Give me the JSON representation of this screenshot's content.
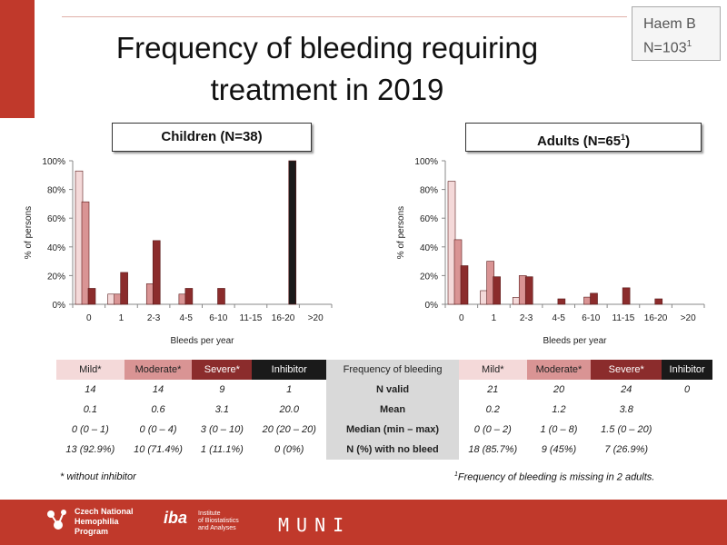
{
  "title_line1": "Frequency of bleeding requiring",
  "title_line2": "treatment in 2019",
  "badge_line1": "Haem B",
  "badge_line2": "N=103",
  "badge_sup": "1",
  "colors": {
    "mild": "#f4d9d9",
    "moderate": "#d99494",
    "severe": "#8b2c2c",
    "inhibitor": "#1a1a1a",
    "accent": "#c0392b"
  },
  "chart_data": [
    {
      "type": "bar",
      "title": "Children (N=38)",
      "xlabel": "Bleeds per year",
      "ylabel": "% of persons",
      "ylim": [
        0,
        100
      ],
      "yticks": [
        "0%",
        "20%",
        "40%",
        "60%",
        "80%",
        "100%"
      ],
      "categories": [
        "0",
        "1",
        "2-3",
        "4-5",
        "6-10",
        "11-15",
        "16-20",
        ">20"
      ],
      "series": [
        {
          "name": "Mild*",
          "values": [
            92.9,
            7.1,
            0,
            0,
            0,
            0,
            0,
            0
          ]
        },
        {
          "name": "Moderate*",
          "values": [
            71.4,
            7.1,
            14.3,
            7.1,
            0,
            0,
            0,
            0
          ]
        },
        {
          "name": "Severe*",
          "values": [
            11.1,
            22.2,
            44.4,
            11.1,
            11.1,
            0,
            0,
            0
          ]
        },
        {
          "name": "Inhibitor",
          "values": [
            0,
            0,
            0,
            0,
            0,
            0,
            100,
            0
          ]
        }
      ]
    },
    {
      "type": "bar",
      "title": "Adults (N=65",
      "title_sup": "1",
      "title_end": ")",
      "xlabel": "Bleeds per year",
      "ylabel": "% of persons",
      "ylim": [
        0,
        100
      ],
      "yticks": [
        "0%",
        "20%",
        "40%",
        "60%",
        "80%",
        "100%"
      ],
      "categories": [
        "0",
        "1",
        "2-3",
        "4-5",
        "6-10",
        "11-15",
        "16-20",
        ">20"
      ],
      "series": [
        {
          "name": "Mild*",
          "values": [
            85.7,
            9.5,
            4.8,
            0,
            0,
            0,
            0,
            0
          ]
        },
        {
          "name": "Moderate*",
          "values": [
            45,
            30,
            20,
            0,
            5,
            0,
            0,
            0
          ]
        },
        {
          "name": "Severe*",
          "values": [
            26.9,
            19.2,
            19.2,
            3.8,
            7.7,
            11.5,
            3.8,
            0
          ]
        },
        {
          "name": "Inhibitor",
          "values": [
            0,
            0,
            0,
            0,
            0,
            0,
            0,
            0
          ]
        }
      ]
    }
  ],
  "table": {
    "headers": [
      "Mild*",
      "Moderate*",
      "Severe*",
      "Inhibitor",
      "Frequency of bleeding",
      "Mild*",
      "Moderate*",
      "Severe*",
      "Inhibitor"
    ],
    "rows": [
      {
        "label": "N valid",
        "left": [
          "14",
          "14",
          "9",
          "1"
        ],
        "right": [
          "21",
          "20",
          "24",
          "0"
        ]
      },
      {
        "label": "Mean",
        "left": [
          "0.1",
          "0.6",
          "3.1",
          "20.0"
        ],
        "right": [
          "0.2",
          "1.2",
          "3.8",
          ""
        ]
      },
      {
        "label": "Median (min – max)",
        "left": [
          "0 (0 – 1)",
          "0 (0 – 4)",
          "3 (0 – 10)",
          "20 (20 – 20)"
        ],
        "right": [
          "0 (0 – 2)",
          "1 (0 – 8)",
          "1.5 (0 – 20)",
          ""
        ]
      },
      {
        "label": "N (%) with no bleed",
        "left": [
          "13 (92.9%)",
          "10 (71.4%)",
          "1 (11.1%)",
          "0 (0%)"
        ],
        "right": [
          "18 (85.7%)",
          "9 (45%)",
          "7 (26.9%)",
          ""
        ]
      }
    ]
  },
  "note_left": "* without inhibitor",
  "note_right_sup": "1",
  "note_right": "Frequency of bleeding is missing in 2 adults.",
  "footer": {
    "logo1": "Czech National\nHemophilia\nProgram",
    "logo2": "iba",
    "logo2_sub": "Institute\nof Biostatistics\nand Analyses",
    "logo3": "MUNI"
  }
}
